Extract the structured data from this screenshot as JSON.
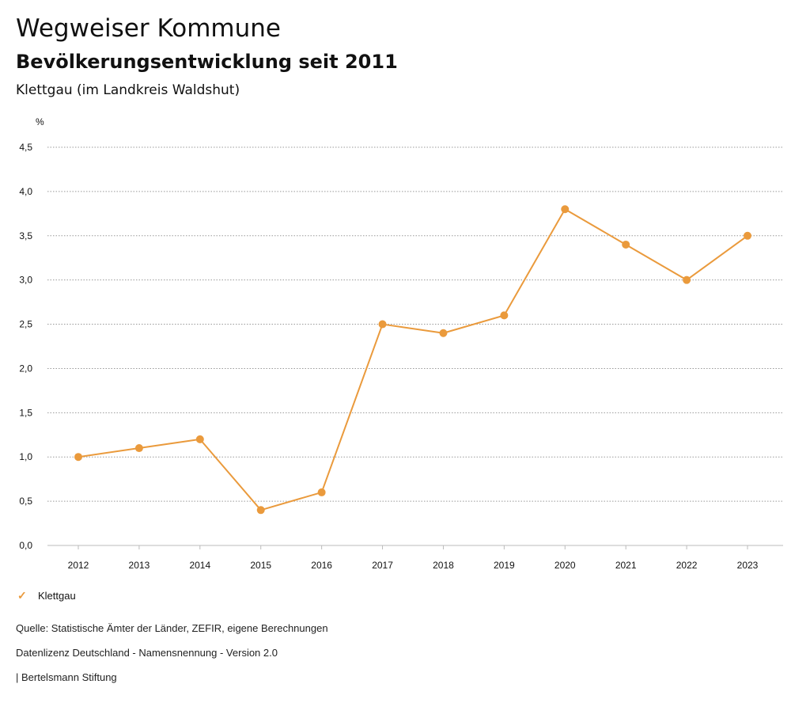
{
  "header": {
    "title": "Wegweiser Kommune",
    "subtitle": "Bevölkerungsentwicklung seit 2011",
    "region": "Klettgau (im Landkreis Waldshut)"
  },
  "legend": {
    "label": "Klettgau",
    "icon": "check-icon"
  },
  "footer": {
    "source": "Quelle: Statistische Ämter der Länder, ZEFIR, eigene Berechnungen",
    "license": "Datenlizenz Deutschland - Namensnennung - Version 2.0",
    "publisher": "| Bertelsmann Stiftung"
  },
  "colors": {
    "series": "#ea9a3c",
    "grid": "#999999",
    "text": "#111111"
  },
  "chart_data": {
    "type": "line",
    "title": "Bevölkerungsentwicklung seit 2011",
    "ylabel": "%",
    "xlabel": "",
    "ylim": [
      0,
      4.5
    ],
    "yticks": [
      "0,0",
      "0,5",
      "1,0",
      "1,5",
      "2,0",
      "2,5",
      "3,0",
      "3,5",
      "4,0",
      "4,5"
    ],
    "ytick_values": [
      0,
      0.5,
      1.0,
      1.5,
      2.0,
      2.5,
      3.0,
      3.5,
      4.0,
      4.5
    ],
    "categories": [
      "2012",
      "2013",
      "2014",
      "2015",
      "2016",
      "2017",
      "2018",
      "2019",
      "2020",
      "2021",
      "2022",
      "2023"
    ],
    "series": [
      {
        "name": "Klettgau",
        "values": [
          1.0,
          1.1,
          1.2,
          0.4,
          0.6,
          2.5,
          2.4,
          2.6,
          3.8,
          3.4,
          3.0,
          3.5
        ]
      }
    ],
    "grid": true,
    "legend": "bottom-left"
  }
}
